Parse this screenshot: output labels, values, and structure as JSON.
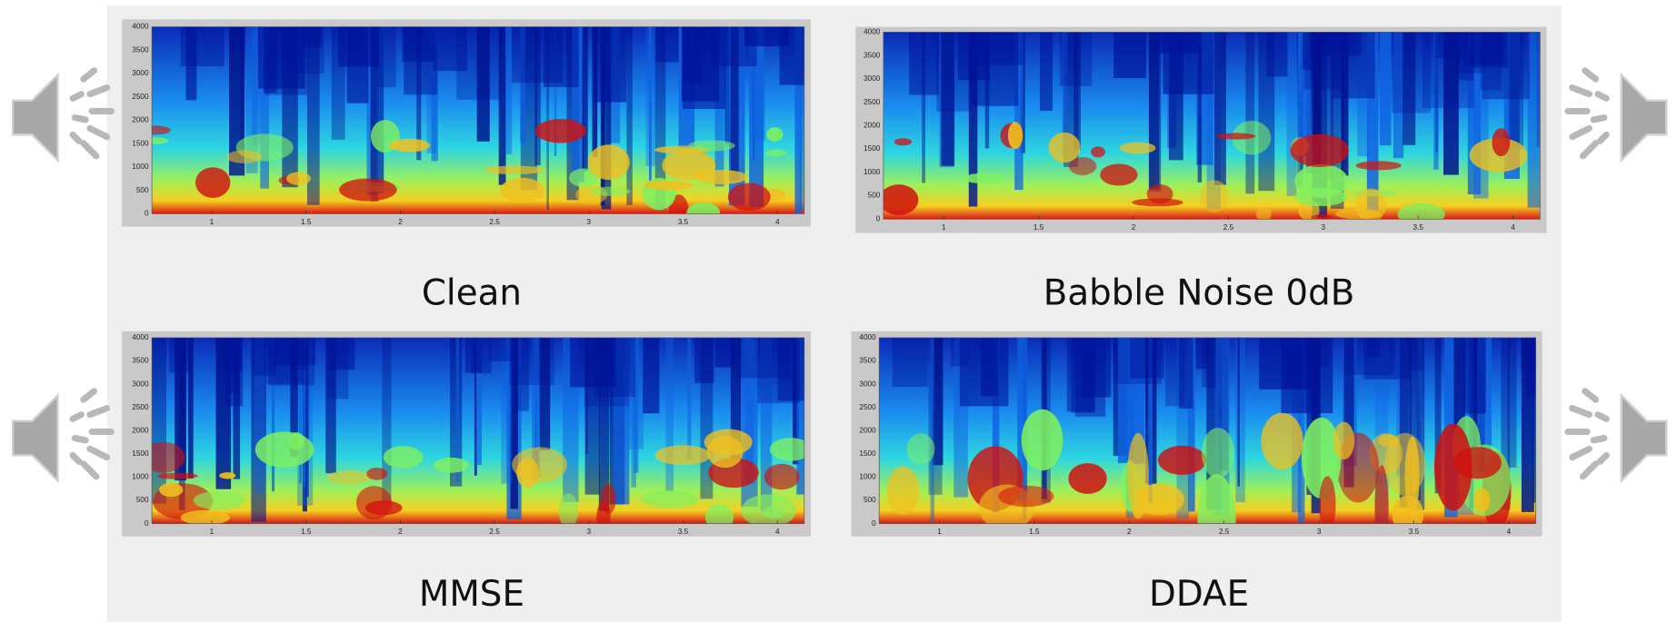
{
  "panels": [
    {
      "label": "Clean"
    },
    {
      "label": "Babble Noise 0dB"
    },
    {
      "label": "MMSE"
    },
    {
      "label": "DDAE"
    }
  ],
  "axes": {
    "yticks": [
      "0",
      "500",
      "1000",
      "1500",
      "2000",
      "2500",
      "3000",
      "3500",
      "4000"
    ],
    "xticks": [
      "1",
      "1.5",
      "2",
      "2.5",
      "3",
      "3.5",
      "4"
    ]
  }
}
